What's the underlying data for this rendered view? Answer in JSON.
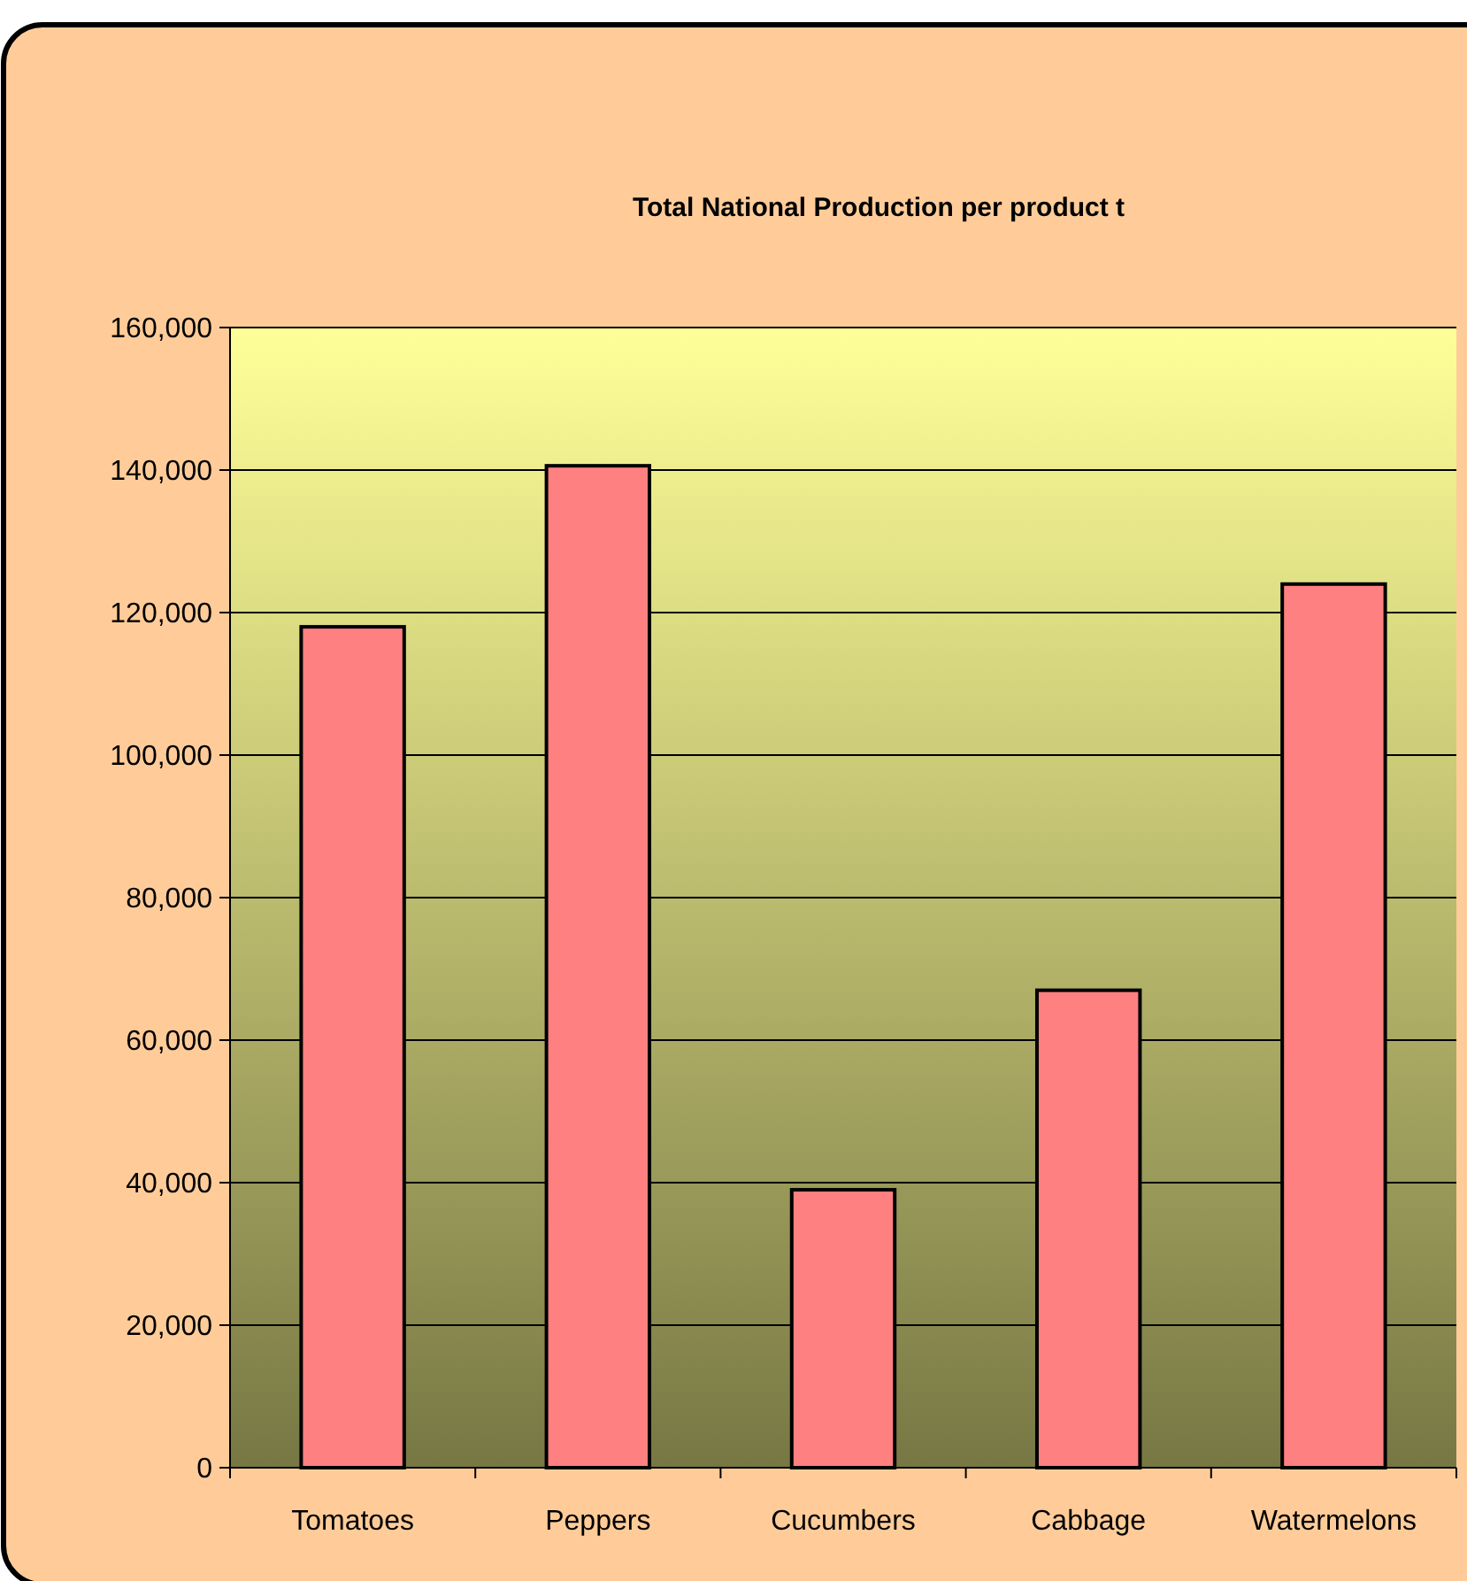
{
  "chart_data": {
    "type": "bar",
    "title": "Total National Production per product t",
    "categories": [
      "Tomatoes",
      "Peppers",
      "Cucumbers",
      "Cabbage",
      "Watermelons"
    ],
    "values": [
      118000,
      140600,
      39000,
      67000,
      124000
    ],
    "color": "#ff8080",
    "ylim": [
      0,
      160000
    ],
    "yticks": [
      {
        "value": 0,
        "label": "0"
      },
      {
        "value": 20000,
        "label": "20,000"
      },
      {
        "value": 40000,
        "label": "40,000"
      },
      {
        "value": 60000,
        "label": "60,000"
      },
      {
        "value": 80000,
        "label": "80,000"
      },
      {
        "value": 100000,
        "label": "100,000"
      },
      {
        "value": 120000,
        "label": "120,000"
      },
      {
        "value": 140000,
        "label": "140,000"
      },
      {
        "value": 160000,
        "label": "160,000"
      }
    ],
    "grid": "y"
  }
}
